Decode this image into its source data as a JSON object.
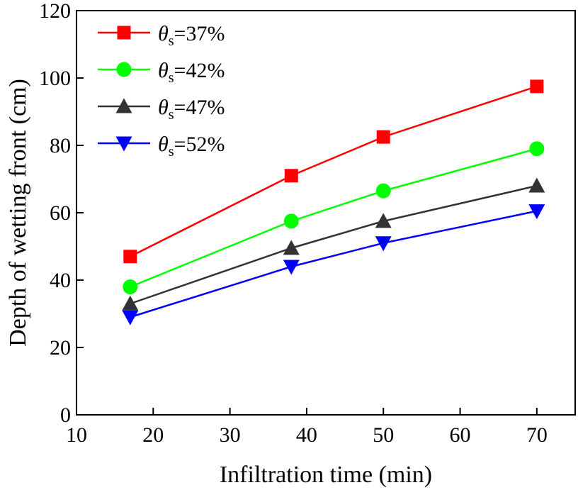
{
  "chart_data": {
    "type": "line",
    "xlabel": "Infiltration time (min)",
    "ylabel": "Depth of wetting front (cm)",
    "xlim": [
      10,
      75
    ],
    "ylim": [
      0,
      120
    ],
    "xticks": [
      10,
      20,
      30,
      40,
      50,
      60,
      70
    ],
    "yticks": [
      0,
      20,
      40,
      60,
      80,
      100,
      120
    ],
    "x": [
      17,
      38,
      50,
      70
    ],
    "legend": "top-left",
    "grid": false,
    "series": [
      {
        "name_symbol": "θ",
        "name_sub": "s",
        "name_rest": "=37%",
        "color": "#ff0000",
        "marker": "square",
        "values": [
          47,
          71,
          82.5,
          97.5
        ]
      },
      {
        "name_symbol": "θ",
        "name_sub": "s",
        "name_rest": "=42%",
        "color": "#00ff00",
        "marker": "circle",
        "values": [
          38,
          57.5,
          66.5,
          79
        ]
      },
      {
        "name_symbol": "θ",
        "name_sub": "s",
        "name_rest": "=47%",
        "color": "#333333",
        "marker": "triangle-up",
        "values": [
          33,
          49.5,
          57.5,
          68
        ]
      },
      {
        "name_symbol": "θ",
        "name_sub": "s",
        "name_rest": "=52%",
        "color": "#0000ff",
        "marker": "triangle-down",
        "values": [
          29,
          44,
          51,
          60.5
        ]
      }
    ]
  }
}
